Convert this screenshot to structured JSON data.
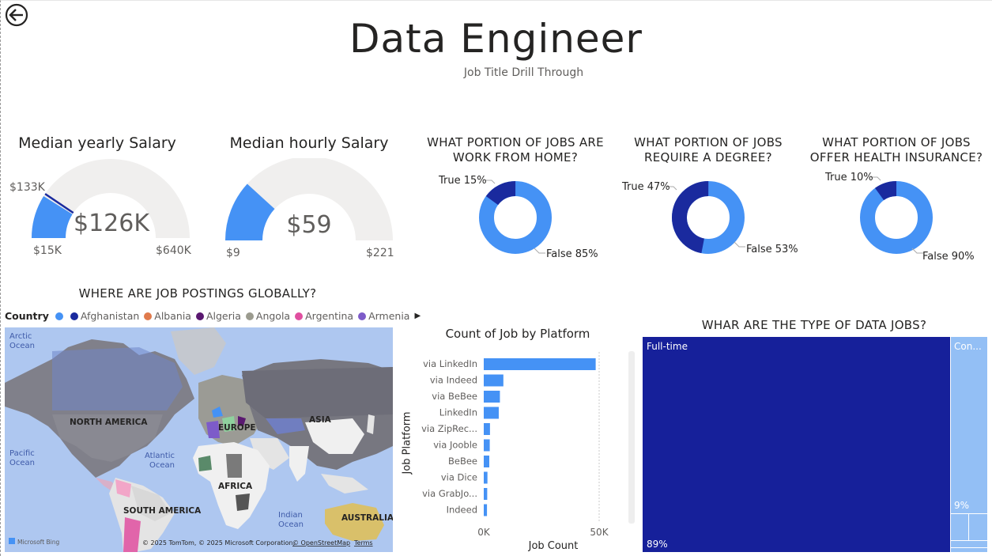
{
  "header": {
    "title": "Data Engineer",
    "subtitle": "Job Title Drill Through",
    "back_icon": "back-arrow-icon"
  },
  "gauges": [
    {
      "title": "Median yearly Salary",
      "value_label": "$126K",
      "min_label": "$15K",
      "max_label": "$640K",
      "target_label": "$133K",
      "value": 126,
      "min": 15,
      "max": 640,
      "target": 133
    },
    {
      "title": "Median hourly Salary",
      "value_label": "$59",
      "min_label": "$9",
      "max_label": "$221",
      "value": 59,
      "min": 9,
      "max": 221
    }
  ],
  "donuts": [
    {
      "title_line1": "WHAT PORTION OF JOBS ARE",
      "title_line2": "WORK FROM HOME?",
      "true_label": "True 15%",
      "false_label": "False 85%",
      "true_pct": 15,
      "false_pct": 85
    },
    {
      "title_line1": "WHAT PORTION OF JOBS",
      "title_line2": "REQUIRE A DEGREE?",
      "true_label": "True 47%",
      "false_label": "False 53%",
      "true_pct": 47,
      "false_pct": 53
    },
    {
      "title_line1": "WHAT PORTION OF JOBS",
      "title_line2": "OFFER HEALTH INSURANCE?",
      "true_label": "True 10%",
      "false_label": "False 90%",
      "true_pct": 10,
      "false_pct": 90
    }
  ],
  "colors": {
    "light_blue": "#4592f5",
    "dark_blue": "#1a2a9e",
    "gauge_bg": "#f0efee",
    "treemap_dark": "#16209a",
    "treemap_light": "#93bff5"
  },
  "map": {
    "title": "WHERE ARE JOB POSTINGS GLOBALLY?",
    "legend_title": "Country",
    "legend_items": [
      {
        "label": "",
        "color": "#4592f5"
      },
      {
        "label": "Afghanistan",
        "color": "#1a2a9e"
      },
      {
        "label": "Albania",
        "color": "#e07a4c"
      },
      {
        "label": "Algeria",
        "color": "#5a1870"
      },
      {
        "label": "Angola",
        "color": "#9b9b8f"
      },
      {
        "label": "Argentina",
        "color": "#e04fa0"
      },
      {
        "label": "Armenia",
        "color": "#7d5bc9"
      }
    ],
    "labels": {
      "arctic_1": "Arctic",
      "arctic_2": "Ocean",
      "north_america": "NORTH AMERICA",
      "europe": "EUROPE",
      "asia": "ASIA",
      "pacific_1": "Pacific",
      "pacific_2": "Ocean",
      "atlantic_1": "Atlantic",
      "atlantic_2": "Ocean",
      "africa": "AFRICA",
      "south_america": "SOUTH AMERICA",
      "indian_1": "Indian",
      "indian_2": "Ocean",
      "australia": "AUSTRALIA",
      "bing": "Microsoft Bing",
      "copyright": "© 2025 TomTom, © 2025 Microsoft Corporation,",
      "osm": "© OpenStreetMap",
      "terms": "Terms"
    }
  },
  "bar_chart": {
    "title": "Count of Job by Platform",
    "ylabel": "Job Platform",
    "xlabel": "Job Count",
    "ticks": [
      "0K",
      "50K"
    ]
  },
  "chart_data": [
    {
      "type": "bar",
      "title": "Count of Job by Platform",
      "xlabel": "Job Count",
      "ylabel": "Job Platform",
      "orientation": "horizontal",
      "categories": [
        "via LinkedIn",
        "via Indeed",
        "via BeBee",
        "LinkedIn",
        "via ZipRec...",
        "via Jooble",
        "BeBee",
        "via Dice",
        "via GrabJo...",
        "Indeed"
      ],
      "values": [
        48500,
        8500,
        7000,
        6500,
        2700,
        2600,
        2400,
        1600,
        1500,
        1400
      ],
      "xlim": [
        0,
        50000
      ],
      "tick_labels": [
        "0K",
        "50K"
      ]
    },
    {
      "type": "treemap",
      "title": "WHAR ARE THE TYPE OF DATA JOBS?",
      "categories": [
        "Full-time",
        "Con..."
      ],
      "values": [
        89,
        9
      ],
      "value_labels": [
        "89%",
        "9%"
      ]
    }
  ],
  "treemap": {
    "title": "WHAR ARE THE TYPE OF DATA JOBS?",
    "full_time_label": "Full-time",
    "full_time_pct": "89%",
    "contract_label": "Con...",
    "contract_pct": "9%"
  }
}
